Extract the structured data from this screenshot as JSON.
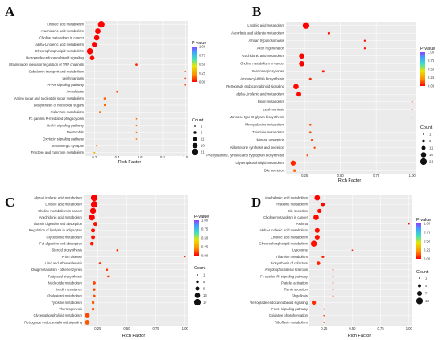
{
  "colors": {
    "scale": [
      "#ff0000",
      "#ff8c00",
      "#e6e600",
      "#40e0c0",
      "#40a0ff",
      "#9040ff"
    ],
    "panel_bg": "#ebebeb",
    "grid": "#ffffff"
  },
  "legend": {
    "pvalue_title": "P-value",
    "count_title": "Count"
  },
  "chart_data": [
    {
      "panel": "A",
      "type": "scatter",
      "xlabel": "Rich Factor",
      "x_ticks": [
        "0.2",
        "0.4",
        "0.6",
        "0.8",
        "1.0"
      ],
      "xlim": [
        0.12,
        1.02
      ],
      "pvalue_ticks": [
        "1.00",
        "0.75",
        "0.50",
        "0.25",
        "0.00"
      ],
      "count_ticks": [
        "1",
        "6",
        "11",
        "16",
        "21"
      ],
      "count_range": [
        1,
        21
      ],
      "points": [
        {
          "term": "Linoleic acid metabolism",
          "rich": 0.26,
          "pvalue": 0.0,
          "count": 21
        },
        {
          "term": "Arachidonic acid metabolism",
          "rich": 0.23,
          "pvalue": 0.0,
          "count": 17
        },
        {
          "term": "Choline metabolism in cancer",
          "rich": 0.22,
          "pvalue": 0.0,
          "count": 16
        },
        {
          "term": "alpha-Linolenic acid metabolism",
          "rich": 0.2,
          "pvalue": 0.0,
          "count": 16
        },
        {
          "term": "Glycerophospholipid metabolism",
          "rich": 0.16,
          "pvalue": 0.0,
          "count": 19
        },
        {
          "term": "Retrograde endocannabinoid signaling",
          "rich": 0.18,
          "pvalue": 0.01,
          "count": 13
        },
        {
          "term": "Inflammatory mediator regulation of TRP channels",
          "rich": 0.57,
          "pvalue": 0.05,
          "count": 4
        },
        {
          "term": "Cobalamin transport and metabolism",
          "rich": 1.0,
          "pvalue": 0.1,
          "count": 1
        },
        {
          "term": "Leishmaniasis",
          "rich": 1.0,
          "pvalue": 0.1,
          "count": 1
        },
        {
          "term": "PPAR signaling pathway",
          "rich": 1.0,
          "pvalue": 0.1,
          "count": 1
        },
        {
          "term": "Amoebiasis",
          "rich": 0.4,
          "pvalue": 0.12,
          "count": 4
        },
        {
          "term": "Amino sugar and nucleotide sugar metabolism",
          "rich": 0.29,
          "pvalue": 0.14,
          "count": 4
        },
        {
          "term": "Biosynthesis of nucleotide sugars",
          "rich": 0.29,
          "pvalue": 0.14,
          "count": 3
        },
        {
          "term": "Galactose metabolism",
          "rich": 0.25,
          "pvalue": 0.15,
          "count": 3
        },
        {
          "term": "Fc gamma R-mediated phagocytosis",
          "rich": 0.57,
          "pvalue": 0.16,
          "count": 1
        },
        {
          "term": "GnRH signaling pathway",
          "rich": 0.57,
          "pvalue": 0.16,
          "count": 1
        },
        {
          "term": "Neutrophils",
          "rich": 0.57,
          "pvalue": 0.17,
          "count": 1
        },
        {
          "term": "Oxytocin signaling pathway",
          "rich": 0.57,
          "pvalue": 0.17,
          "count": 1
        },
        {
          "term": "Serotonergic synapse",
          "rich": 0.22,
          "pvalue": 0.25,
          "count": 2
        },
        {
          "term": "Fructose and mannose metabolism",
          "rich": 0.2,
          "pvalue": 0.3,
          "count": 2
        }
      ]
    },
    {
      "panel": "B",
      "type": "scatter",
      "xlabel": "Rich Factor",
      "x_ticks": [
        "0.25",
        "0.50",
        "0.75",
        "1.00"
      ],
      "xlim": [
        0.12,
        1.03
      ],
      "pvalue_ticks": [
        "1.00",
        "0.75",
        "0.50",
        "0.25",
        "0.00"
      ],
      "count_ticks": [
        "1",
        "6",
        "11",
        "16",
        "21"
      ],
      "count_range": [
        1,
        21
      ],
      "points": [
        {
          "term": "Linoleic acid metabolism",
          "rich": 0.26,
          "pvalue": 0.0,
          "count": 21
        },
        {
          "term": "Ascorbate and aldarate metabolism",
          "rich": 0.42,
          "pvalue": 0.02,
          "count": 5
        },
        {
          "term": "African trypanosomiasis",
          "rich": 0.67,
          "pvalue": 0.03,
          "count": 3
        },
        {
          "term": "Axon regeneration",
          "rich": 0.67,
          "pvalue": 0.03,
          "count": 3
        },
        {
          "term": "Arachidonic acid metabolism",
          "rich": 0.23,
          "pvalue": 0.0,
          "count": 16
        },
        {
          "term": "Choline metabolism in cancer",
          "rich": 0.23,
          "pvalue": 0.0,
          "count": 16
        },
        {
          "term": "Serotonergic synapse",
          "rich": 0.38,
          "pvalue": 0.05,
          "count": 5
        },
        {
          "term": "Aminoacyl-tRNA biosynthesis",
          "rich": 0.29,
          "pvalue": 0.06,
          "count": 5
        },
        {
          "term": "Retrograde endocannabinoid signaling",
          "rich": 0.19,
          "pvalue": 0.01,
          "count": 16
        },
        {
          "term": "alpha-Linolenic acid metabolism",
          "rich": 0.21,
          "pvalue": 0.01,
          "count": 14
        },
        {
          "term": "Biotin metabolism",
          "rich": 1.0,
          "pvalue": 0.08,
          "count": 1
        },
        {
          "term": "Leishmaniasis",
          "rich": 1.0,
          "pvalue": 0.08,
          "count": 1
        },
        {
          "term": "Mannose type O-glycan biosynthesis",
          "rich": 1.0,
          "pvalue": 0.08,
          "count": 1
        },
        {
          "term": "Phenylalanine metabolism",
          "rich": 0.29,
          "pvalue": 0.1,
          "count": 4
        },
        {
          "term": "Thiamine metabolism",
          "rich": 0.29,
          "pvalue": 0.1,
          "count": 4
        },
        {
          "term": "Mineral absorption",
          "rich": 0.3,
          "pvalue": 0.1,
          "count": 3
        },
        {
          "term": "Aldosterone synthesis and secretion",
          "rich": 0.32,
          "pvalue": 0.11,
          "count": 3
        },
        {
          "term": "Phenylalanine, tyrosine and tryptophan biosynthesis",
          "rich": 0.27,
          "pvalue": 0.12,
          "count": 3
        },
        {
          "term": "Glycerophospholipid metabolism",
          "rich": 0.17,
          "pvalue": 0.05,
          "count": 15
        },
        {
          "term": "Bile secretion",
          "rich": 0.18,
          "pvalue": 0.15,
          "count": 6
        }
      ]
    },
    {
      "panel": "C",
      "type": "scatter",
      "xlabel": "Rich Factor",
      "x_ticks": [
        "0.25",
        "0.50",
        "0.75",
        "1.00"
      ],
      "xlim": [
        0.13,
        1.03
      ],
      "pvalue_ticks": [
        "1.00",
        "0.75",
        "0.50",
        "0.25",
        "0.00"
      ],
      "count_ticks": [
        "1",
        "5",
        "9",
        "13",
        "17"
      ],
      "count_range": [
        1,
        17
      ],
      "points": [
        {
          "term": "alpha-Linolenic acid metabolism",
          "rich": 0.22,
          "pvalue": 0.0,
          "count": 17
        },
        {
          "term": "Linoleic acid metabolism",
          "rich": 0.22,
          "pvalue": 0.0,
          "count": 17
        },
        {
          "term": "Choline metabolism in cancer",
          "rich": 0.21,
          "pvalue": 0.0,
          "count": 15
        },
        {
          "term": "Arachidonic acid metabolism",
          "rich": 0.2,
          "pvalue": 0.0,
          "count": 15
        },
        {
          "term": "Vitamin digestion and absorption",
          "rich": 0.23,
          "pvalue": 0.02,
          "count": 9
        },
        {
          "term": "Regulation of lipolysis in adipocytes",
          "rich": 0.21,
          "pvalue": 0.02,
          "count": 9
        },
        {
          "term": "Glycerolipid metabolism",
          "rich": 0.21,
          "pvalue": 0.03,
          "count": 9
        },
        {
          "term": "Fat digestion and absorption",
          "rich": 0.2,
          "pvalue": 0.03,
          "count": 8
        },
        {
          "term": "Steroid biosynthesis",
          "rich": 0.42,
          "pvalue": 0.06,
          "count": 3
        },
        {
          "term": "Prion disease",
          "rich": 1.0,
          "pvalue": 0.06,
          "count": 1
        },
        {
          "term": "Lipid and atherosclerosis",
          "rich": 0.27,
          "pvalue": 0.07,
          "count": 4
        },
        {
          "term": "Drug metabolism - other enzymes",
          "rich": 0.33,
          "pvalue": 0.08,
          "count": 3
        },
        {
          "term": "Fatty acid biosynthesis",
          "rich": 0.34,
          "pvalue": 0.09,
          "count": 3
        },
        {
          "term": "Nucleotide metabolism",
          "rich": 0.22,
          "pvalue": 0.1,
          "count": 6
        },
        {
          "term": "Insulin resistance",
          "rich": 0.22,
          "pvalue": 0.1,
          "count": 5
        },
        {
          "term": "Cholesterol metabolism",
          "rich": 0.22,
          "pvalue": 0.11,
          "count": 5
        },
        {
          "term": "Tyrosine metabolism",
          "rich": 0.21,
          "pvalue": 0.12,
          "count": 5
        },
        {
          "term": "Thermogenesis",
          "rich": 0.21,
          "pvalue": 0.12,
          "count": 5
        },
        {
          "term": "Glycerophospholipid metabolism",
          "rich": 0.16,
          "pvalue": 0.1,
          "count": 12
        },
        {
          "term": "Retrograde endocannabinoid signaling",
          "rich": 0.16,
          "pvalue": 0.12,
          "count": 11
        }
      ]
    },
    {
      "panel": "D",
      "type": "scatter",
      "xlabel": "Rich Factor",
      "x_ticks": [
        "0.25",
        "0.50",
        "0.75",
        "1.00"
      ],
      "xlim": [
        0.12,
        1.03
      ],
      "pvalue_ticks": [
        "1.00",
        "0.75",
        "0.50",
        "0.25",
        "0.00"
      ],
      "count_ticks": [
        "1",
        "4",
        "7",
        "10"
      ],
      "count_range": [
        1,
        10
      ],
      "points": [
        {
          "term": "Arachidonic acid metabolism",
          "rich": 0.19,
          "pvalue": 0.0,
          "count": 8
        },
        {
          "term": "Histidine metabolism",
          "rich": 0.24,
          "pvalue": 0.01,
          "count": 5
        },
        {
          "term": "Bile secretion",
          "rich": 0.21,
          "pvalue": 0.01,
          "count": 6
        },
        {
          "term": "Choline metabolism in cancer",
          "rich": 0.18,
          "pvalue": 0.01,
          "count": 8
        },
        {
          "term": "Asthma",
          "rich": 1.0,
          "pvalue": 0.02,
          "count": 1
        },
        {
          "term": "alpha-Linolenic acid metabolism",
          "rich": 0.19,
          "pvalue": 0.02,
          "count": 7
        },
        {
          "term": "Linoleic acid metabolism",
          "rich": 0.19,
          "pvalue": 0.02,
          "count": 7
        },
        {
          "term": "Glycerophospholipid metabolism",
          "rich": 0.16,
          "pvalue": 0.02,
          "count": 9
        },
        {
          "term": "Lysosome",
          "rich": 0.5,
          "pvalue": 0.04,
          "count": 1
        },
        {
          "term": "Thiamine metabolism",
          "rich": 0.24,
          "pvalue": 0.05,
          "count": 3
        },
        {
          "term": "Biosynthesis of cofactors",
          "rich": 0.2,
          "pvalue": 0.05,
          "count": 5
        },
        {
          "term": "Amyotrophic lateral sclerosis",
          "rich": 0.33,
          "pvalue": 0.08,
          "count": 1
        },
        {
          "term": "Fc epsilon RI signaling pathway",
          "rich": 0.33,
          "pvalue": 0.08,
          "count": 1
        },
        {
          "term": "Platelet activation",
          "rich": 0.33,
          "pvalue": 0.08,
          "count": 1
        },
        {
          "term": "Renin secretion",
          "rich": 0.33,
          "pvalue": 0.08,
          "count": 1
        },
        {
          "term": "Shigellosis",
          "rich": 0.33,
          "pvalue": 0.08,
          "count": 1
        },
        {
          "term": "Retrograde endocannabinoid signaling",
          "rich": 0.16,
          "pvalue": 0.06,
          "count": 6
        },
        {
          "term": "FoxO signaling pathway",
          "rich": 0.25,
          "pvalue": 0.1,
          "count": 1
        },
        {
          "term": "Oxidative phosphorylation",
          "rich": 0.25,
          "pvalue": 0.1,
          "count": 1
        },
        {
          "term": "Riboflavin metabolism",
          "rich": 0.25,
          "pvalue": 0.1,
          "count": 1
        }
      ]
    }
  ]
}
